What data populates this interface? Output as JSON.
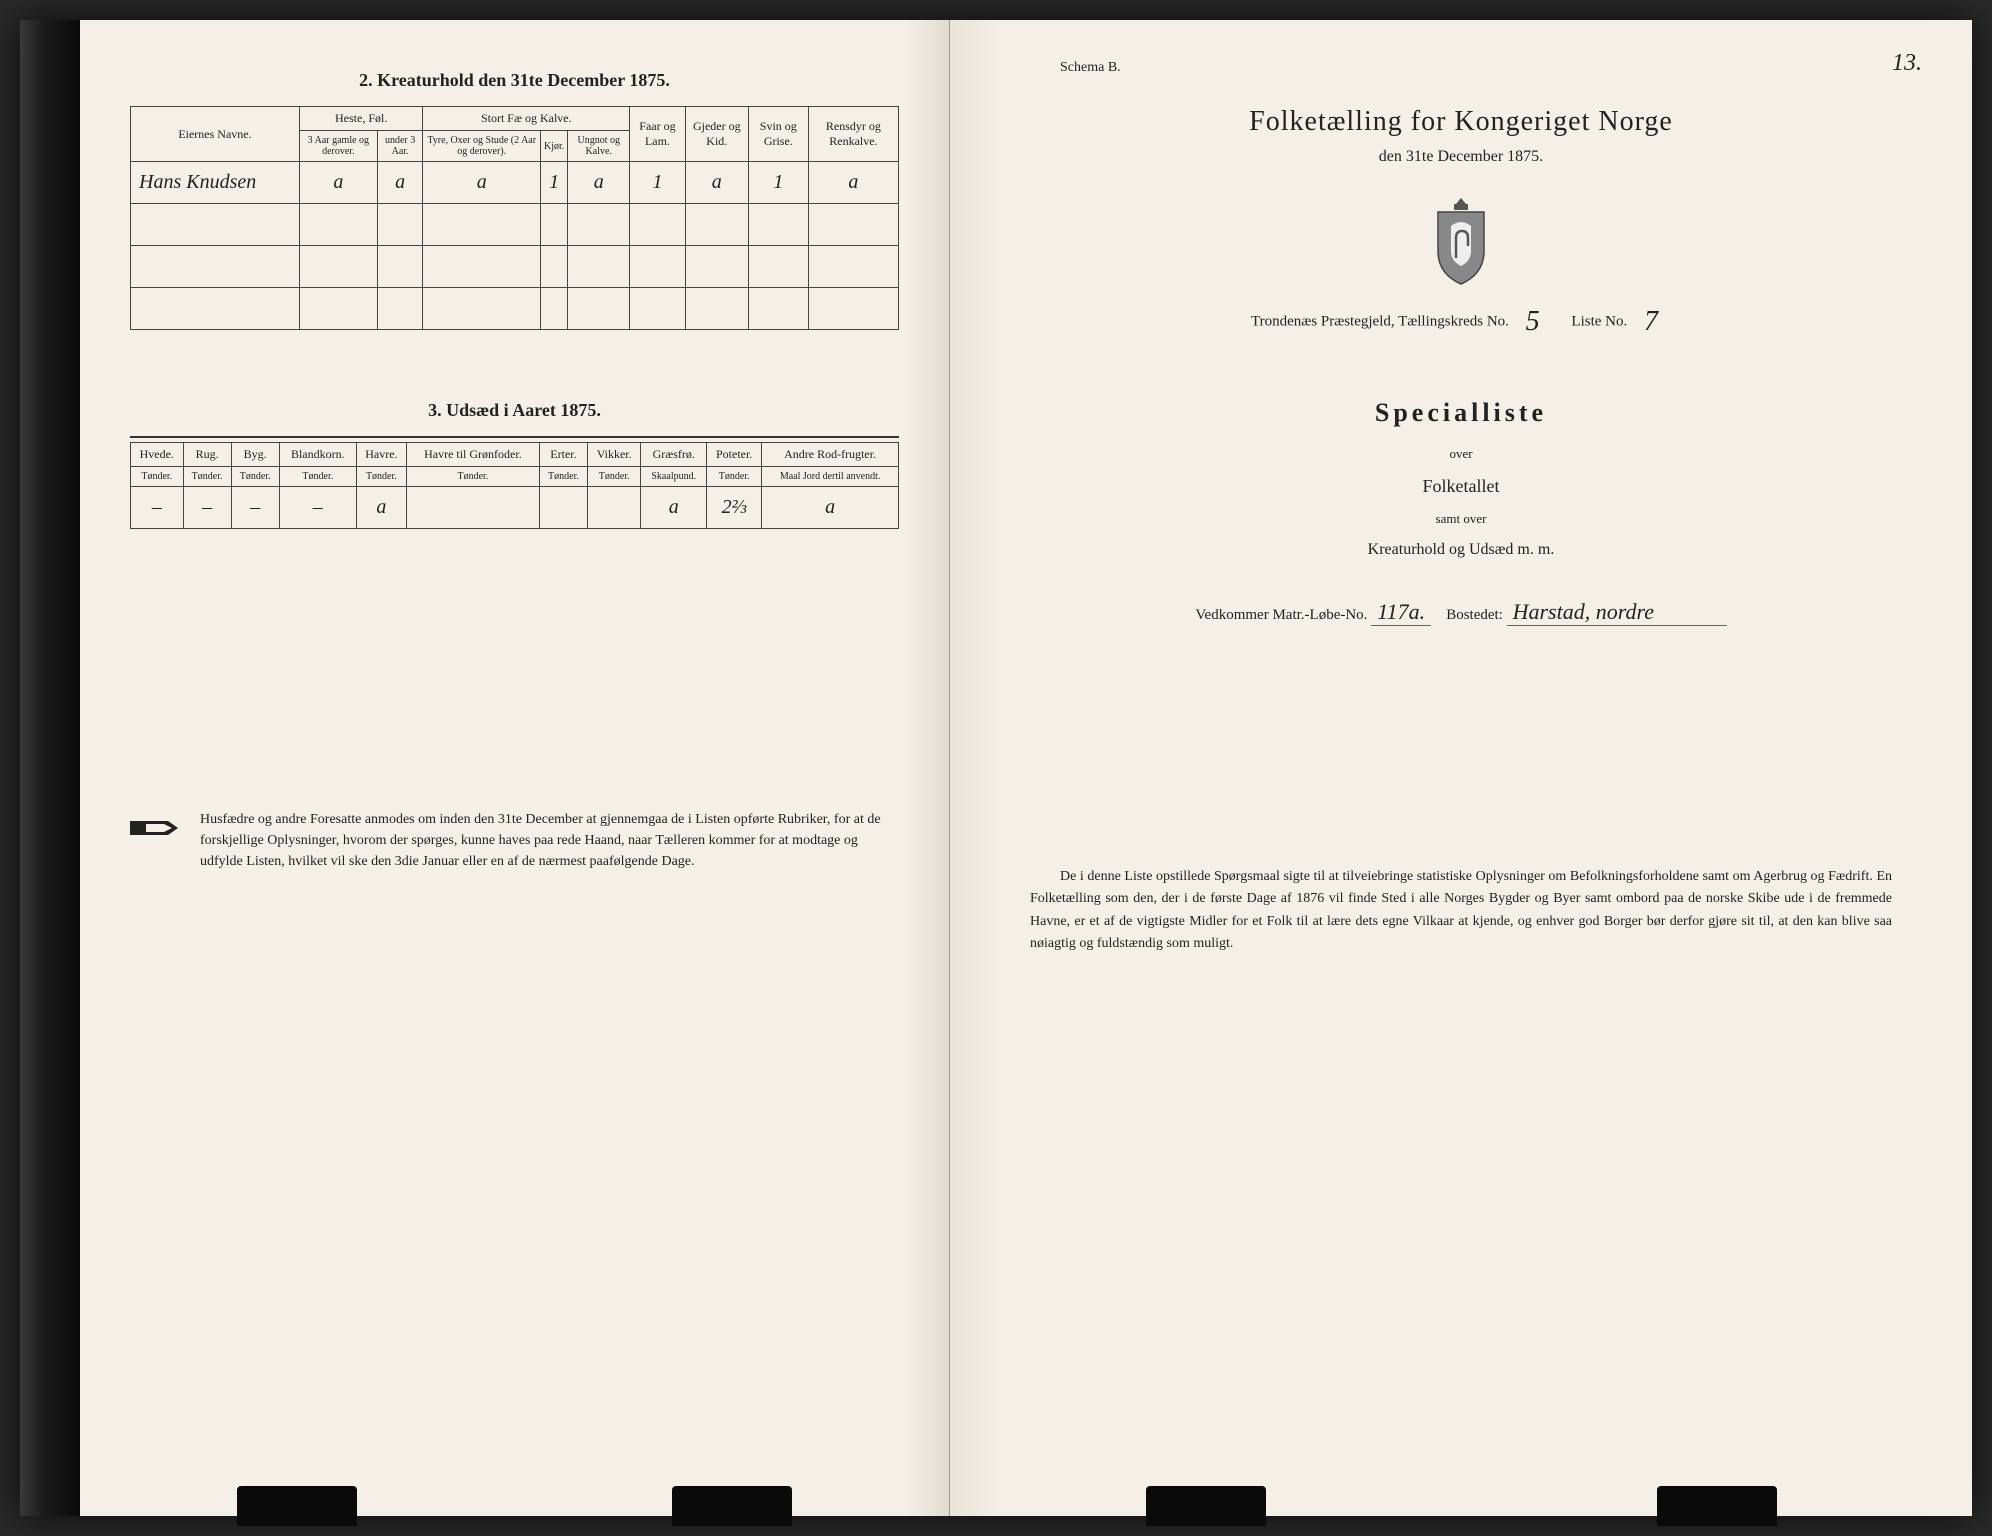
{
  "left": {
    "section2_title": "2.  Kreaturhold den 31te December 1875.",
    "table2": {
      "col_owner": "Eiernes Navne.",
      "grp_heste": "Heste, Føl.",
      "grp_stort": "Stort Fæ og Kalve.",
      "col_faar": "Faar og Lam.",
      "col_gjeder": "Gjeder og Kid.",
      "col_svin": "Svin og Grise.",
      "col_rensdyr": "Rensdyr og Renkalve.",
      "sub_3aar": "3 Aar gamle og derover.",
      "sub_under3": "under 3 Aar.",
      "sub_tyre": "Tyre, Oxer og Stude (2 Aar og derover).",
      "sub_kjor": "Kjør.",
      "sub_ungnot": "Ungnot og Kalve.",
      "row1": {
        "owner": "Hans Knudsen",
        "c1": "a",
        "c2": "a",
        "c3": "a",
        "c4": "1",
        "c5": "a",
        "c6": "1",
        "c7": "a",
        "c8": "1",
        "c9": "a"
      }
    },
    "section3_title": "3.  Udsæd i Aaret 1875.",
    "table3": {
      "cols": [
        "Hvede.",
        "Rug.",
        "Byg.",
        "Blandkorn.",
        "Havre.",
        "Havre til Grønfoder.",
        "Erter.",
        "Vikker.",
        "Græsfrø.",
        "Poteter.",
        "Andre Rod-frugter."
      ],
      "units": [
        "Tønder.",
        "Tønder.",
        "Tønder.",
        "Tønder.",
        "Tønder.",
        "Tønder.",
        "Tønder.",
        "Tønder.",
        "Skaalpund.",
        "Tønder.",
        "Maal Jord dertil anvendt."
      ],
      "row": [
        "–",
        "–",
        "–",
        "–",
        "a",
        "",
        "",
        "",
        "a",
        "2⅔",
        "a"
      ]
    },
    "instructions": "Husfædre og andre Foresatte anmodes om inden den 31te December at gjennemgaa de i Listen opførte Rubriker, for at de forskjellige Oplysninger, hvorom der spørges, kunne haves paa rede Haand, naar Tælleren kommer for at modtage og udfylde Listen, hvilket vil ske den 3die Januar eller en af de nærmest paafølgende Dage."
  },
  "right": {
    "schema": "Schema B.",
    "page_num": "13.",
    "main_title": "Folketælling for Kongeriget Norge",
    "sub_date": "den 31te December 1875.",
    "district_prefix": "Trondenæs Præstegjeld,  Tællingskreds No.",
    "district_no": "5",
    "liste_label": "Liste No.",
    "liste_no": "7",
    "special_title": "Specialliste",
    "over": "over",
    "folketallet": "Folketallet",
    "samt_over": "samt over",
    "kreatur": "Kreaturhold og Udsæd m. m.",
    "vedkommer_label": "Vedkommer Matr.-Løbe-No.",
    "matr_no": "117a.",
    "bostedet_label": "Bostedet:",
    "bostedet": "Harstad, nordre",
    "bottom_para": "De i denne Liste opstillede Spørgsmaal sigte til at tilveiebringe statistiske Oplysninger om Befolkningsforholdene samt om Agerbrug og Fædrift.  En Folketælling som den, der i de første Dage af 1876 vil finde Sted i alle Norges Bygder og Byer samt ombord paa de norske Skibe ude i de fremmede Havne, er et af de vigtigste Midler for et Folk til at lære dets egne Vilkaar at kjende, og enhver god Borger bør derfor gjøre sit til, at den kan blive saa nøiagtig og fuldstændig som muligt."
  }
}
